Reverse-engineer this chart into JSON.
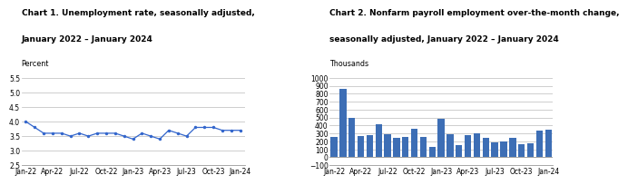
{
  "chart1_title_line1": "Chart 1. Unemployment rate, seasonally adjusted,",
  "chart1_title_line2": "January 2022 – January 2024",
  "chart1_ylabel": "Percent",
  "chart1_ylim": [
    2.5,
    5.5
  ],
  "chart1_yticks": [
    2.5,
    3.0,
    3.5,
    4.0,
    4.5,
    5.0,
    5.5
  ],
  "chart1_data": [
    4.0,
    3.8,
    3.6,
    3.6,
    3.6,
    3.5,
    3.6,
    3.5,
    3.6,
    3.6,
    3.6,
    3.5,
    3.4,
    3.6,
    3.5,
    3.4,
    3.7,
    3.6,
    3.5,
    3.8,
    3.8,
    3.8,
    3.7,
    3.7,
    3.7
  ],
  "chart1_xtick_labels": [
    "Jan-22",
    "Apr-22",
    "Jul-22",
    "Oct-22",
    "Jan-23",
    "Apr-23",
    "Jul-23",
    "Oct-23",
    "Jan-24"
  ],
  "chart1_xtick_positions": [
    0,
    3,
    6,
    9,
    12,
    15,
    18,
    21,
    24
  ],
  "chart1_line_color": "#3366cc",
  "chart1_marker": "o",
  "chart1_marker_size": 2.5,
  "chart2_title_line1": "Chart 2. Nonfarm payroll employment over-the-month change,",
  "chart2_title_line2": "seasonally adjusted, January 2022 – January 2024",
  "chart2_ylabel": "Thousands",
  "chart2_ylim": [
    -100,
    1000
  ],
  "chart2_yticks": [
    -100,
    0,
    100,
    200,
    300,
    400,
    500,
    600,
    700,
    800,
    900,
    1000
  ],
  "chart2_data": [
    251,
    857,
    497,
    271,
    285,
    422,
    293,
    249,
    256,
    354,
    261,
    133,
    482,
    290,
    150,
    281,
    306,
    242,
    187,
    204,
    246,
    165,
    182,
    333,
    353
  ],
  "chart2_xtick_labels": [
    "Jan-22",
    "Apr-22",
    "Jul-22",
    "Oct-22",
    "Jan-23",
    "Apr-23",
    "Jul-23",
    "Oct-23",
    "Jan-24"
  ],
  "chart2_xtick_positions": [
    0,
    3,
    6,
    9,
    12,
    15,
    18,
    21,
    24
  ],
  "chart2_bar_color": "#3d6eb5",
  "bg_color": "#ffffff",
  "grid_color": "#bbbbbb",
  "title_fontsize": 6.5,
  "label_fontsize": 5.8,
  "tick_fontsize": 5.5,
  "spine_color": "#999999"
}
